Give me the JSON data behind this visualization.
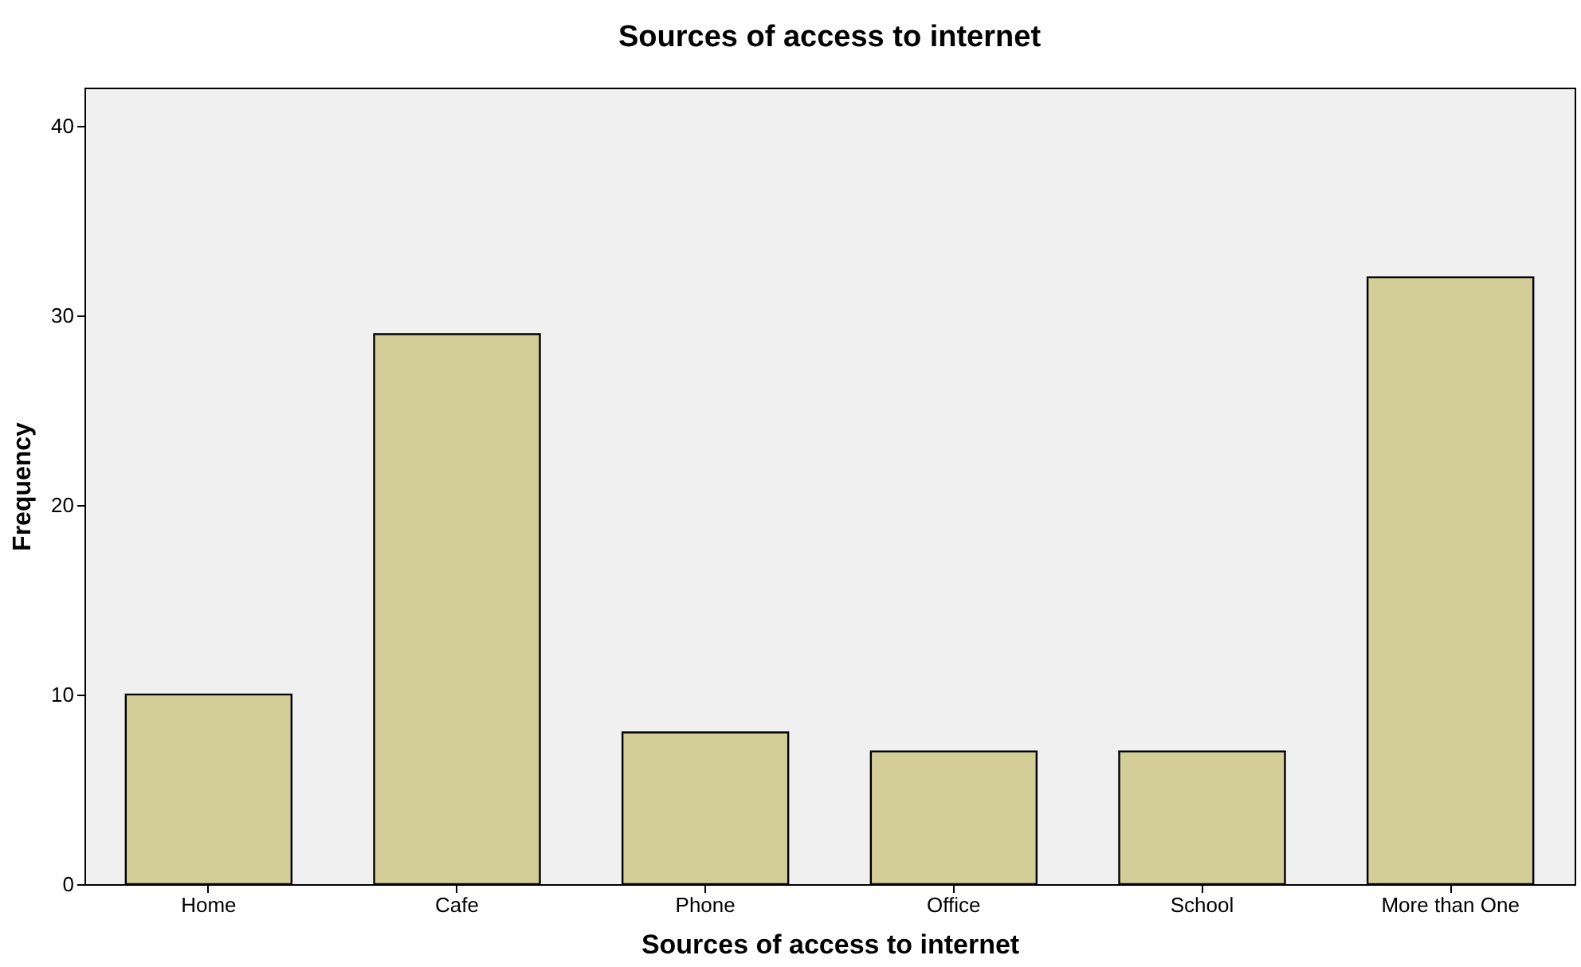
{
  "chart_data": {
    "type": "bar",
    "title": "Sources of access to internet",
    "xlabel": "Sources of access to internet",
    "ylabel": "Frequency",
    "categories": [
      "Home",
      "Cafe",
      "Phone",
      "Office",
      "School",
      "More than One"
    ],
    "values": [
      10,
      29,
      8,
      7,
      7,
      32
    ],
    "color": "#d3ce97",
    "ylim": [
      0,
      42
    ],
    "yticks": [
      0,
      10,
      20,
      30,
      40
    ],
    "grid": false
  }
}
